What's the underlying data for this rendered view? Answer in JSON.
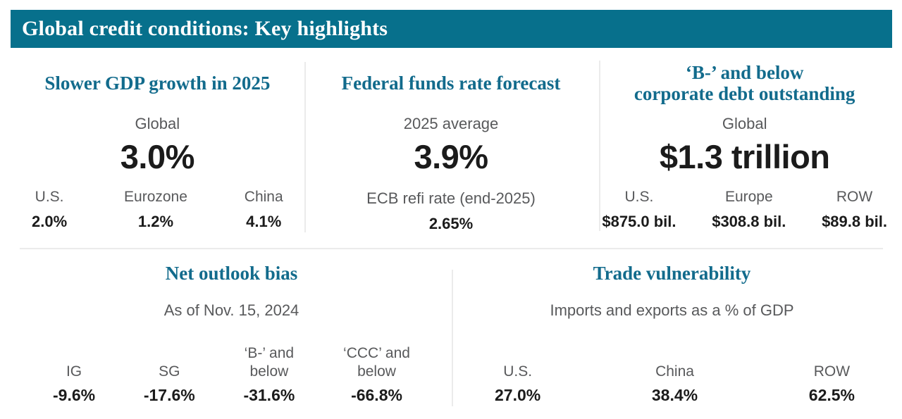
{
  "header": {
    "title": "Global credit conditions: Key highlights"
  },
  "colors": {
    "teal_bar": "#07708C",
    "teal_heading": "#126B8C",
    "label_gray": "#58595B",
    "value_black": "#1B1B1B",
    "divider": "#EBEBEB"
  },
  "top_sections": [
    {
      "title": "Slower GDP growth in 2025",
      "primary_label": "Global",
      "primary_value": "3.0%",
      "items": [
        {
          "label": "U.S.",
          "value": "2.0%"
        },
        {
          "label": "Eurozone",
          "value": "1.2%"
        },
        {
          "label": "China",
          "value": "4.1%"
        }
      ]
    },
    {
      "title": "Federal funds rate forecast",
      "primary_label": "2025 average",
      "primary_value": "3.9%",
      "secondary_label": "ECB refi rate (end-2025)",
      "secondary_value": "2.65%"
    },
    {
      "title": "‘B-’ and below\ncorporate debt outstanding",
      "primary_label": "Global",
      "primary_value": "$1.3 trillion",
      "items": [
        {
          "label": "U.S.",
          "value": "$875.0 bil."
        },
        {
          "label": "Europe",
          "value": "$308.8 bil."
        },
        {
          "label": "ROW",
          "value": "$89.8 bil."
        }
      ]
    }
  ],
  "bottom_sections": [
    {
      "title": "Net outlook bias",
      "subtitle": "As of Nov. 15, 2024",
      "items": [
        {
          "label": "IG",
          "value": "-9.6%"
        },
        {
          "label": "SG",
          "value": "-17.6%"
        },
        {
          "label": "‘B-’ and\nbelow",
          "value": "-31.6%"
        },
        {
          "label": "‘CCC’ and\nbelow",
          "value": "-66.8%"
        }
      ]
    },
    {
      "title": "Trade vulnerability",
      "subtitle": "Imports and exports as a % of GDP",
      "items": [
        {
          "label": "U.S.",
          "value": "27.0%"
        },
        {
          "label": "China",
          "value": "38.4%"
        },
        {
          "label": "ROW",
          "value": "62.5%"
        }
      ]
    }
  ]
}
